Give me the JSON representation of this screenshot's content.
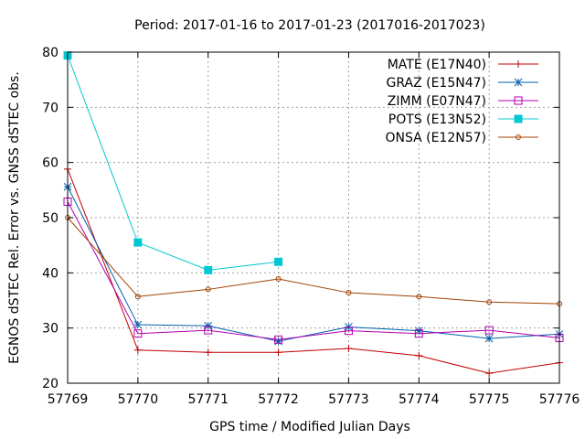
{
  "chart_data": {
    "type": "line",
    "title": "Period: 2017-01-16 to 2017-01-23 (2017016-2017023)",
    "xlabel": "GPS time / Modified Julian Days",
    "ylabel": "EGNOS dSTEC Rel. Error vs. GNSS dSTEC obs.",
    "xlim": [
      57769,
      57776
    ],
    "ylim": [
      20,
      80
    ],
    "x_ticks": [
      "57769",
      "57770",
      "57771",
      "57772",
      "57773",
      "57774",
      "57775",
      "57776"
    ],
    "y_ticks": [
      "20",
      "30",
      "40",
      "50",
      "60",
      "70",
      "80"
    ],
    "grid": true,
    "legend_position": "top-right",
    "series": [
      {
        "name": "MATE (E17N40)",
        "color": "#c00000",
        "marker": "plus",
        "x": [
          57769,
          57770,
          57771,
          57772,
          57773,
          57774,
          57775,
          57776
        ],
        "values": [
          58.8,
          26.0,
          25.6,
          25.6,
          26.3,
          25.0,
          21.8,
          23.7
        ]
      },
      {
        "name": "GRAZ (E15N47)",
        "color": "#0060ad",
        "marker": "star",
        "x": [
          57769,
          57770,
          57771,
          57772,
          57773,
          57774,
          57775,
          57776
        ],
        "values": [
          55.6,
          30.6,
          30.4,
          27.6,
          30.2,
          29.5,
          28.1,
          28.9
        ]
      },
      {
        "name": "ZIMM (E07N47)",
        "color": "#b000b0",
        "marker": "square",
        "x": [
          57769,
          57770,
          57771,
          57772,
          57773,
          57774,
          57775,
          57776
        ],
        "values": [
          52.9,
          29.0,
          29.6,
          27.9,
          29.5,
          29.0,
          29.6,
          28.2
        ]
      },
      {
        "name": "POTS (E13N52)",
        "color": "#00c8d0",
        "marker": "filled-square",
        "x": [
          57769,
          57770,
          57771,
          57772
        ],
        "values": [
          79.4,
          45.5,
          40.5,
          42.0
        ]
      },
      {
        "name": "ONSA (E12N57)",
        "color": "#a04000",
        "marker": "circle",
        "x": [
          57769,
          57770,
          57771,
          57772,
          57773,
          57774,
          57775,
          57776
        ],
        "values": [
          50.0,
          35.7,
          37.0,
          38.9,
          36.4,
          35.7,
          34.7,
          34.4
        ]
      }
    ]
  }
}
